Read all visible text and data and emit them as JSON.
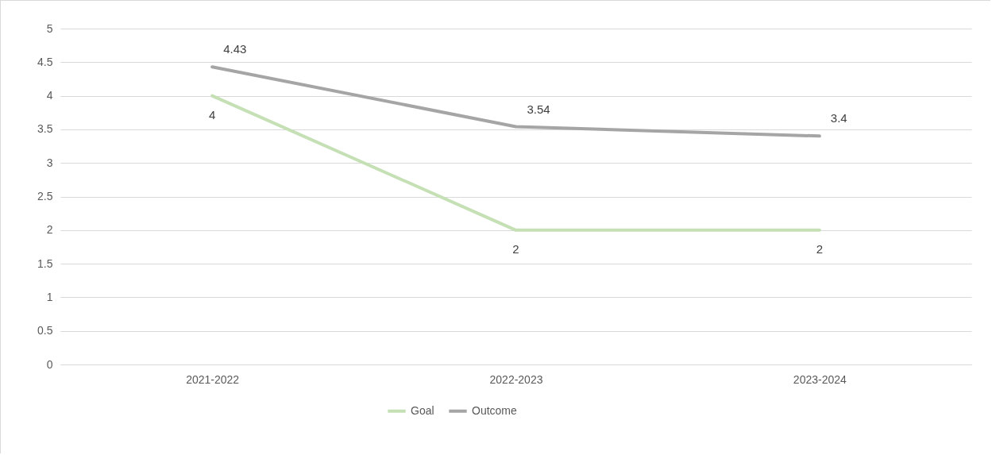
{
  "chart_data": {
    "type": "line",
    "categories": [
      "2021-2022",
      "2022-2023",
      "2023-2024"
    ],
    "series": [
      {
        "name": "Goal",
        "color": "#c5e0b4",
        "values": [
          4,
          2,
          2
        ]
      },
      {
        "name": "Outcome",
        "color": "#a5a5a5",
        "values": [
          4.43,
          3.54,
          3.4
        ]
      }
    ],
    "ylim": [
      0,
      5
    ],
    "yticks": [
      0,
      0.5,
      1,
      1.5,
      2,
      2.5,
      3,
      3.5,
      4,
      4.5,
      5
    ],
    "grid": "y",
    "legend": "bottom",
    "data_labels": true,
    "marker": "none",
    "line_style": "solid"
  }
}
